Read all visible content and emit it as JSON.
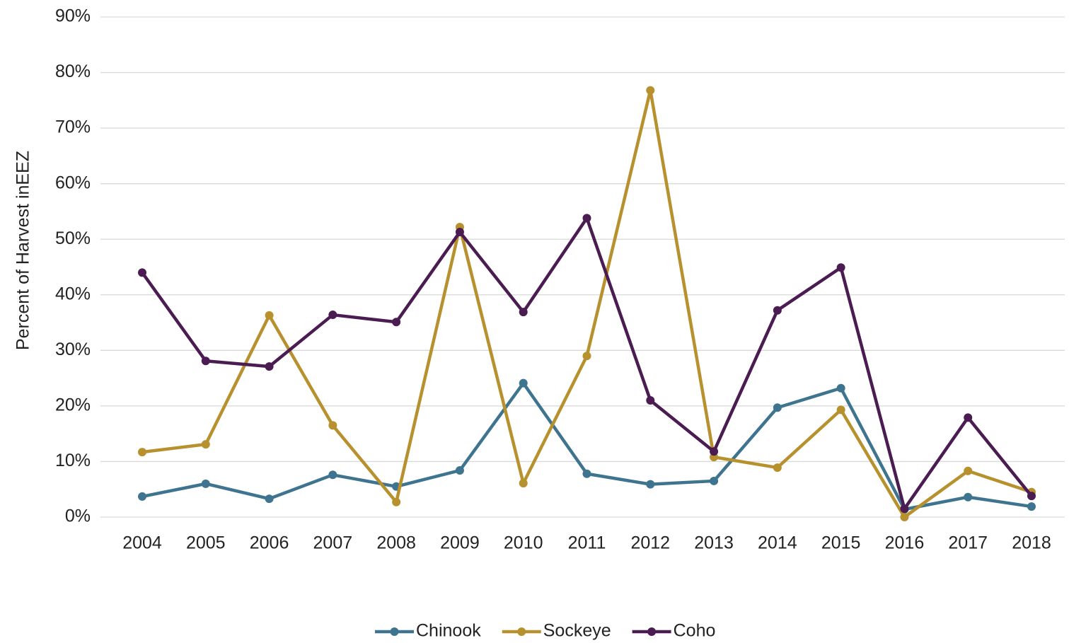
{
  "chart_data": {
    "type": "line",
    "y_label": "Percent of Harvest inEEZ",
    "categories": [
      "2004",
      "2005",
      "2006",
      "2007",
      "2008",
      "2009",
      "2010",
      "2011",
      "2012",
      "2013",
      "2014",
      "2015",
      "2016",
      "2017",
      "2018"
    ],
    "series": [
      {
        "name": "Chinook",
        "color": "#3e7490",
        "values": [
          3.7,
          6.0,
          3.3,
          7.6,
          5.5,
          8.4,
          24.1,
          7.8,
          5.9,
          6.5,
          19.7,
          23.2,
          1.4,
          3.6,
          1.9
        ]
      },
      {
        "name": "Sockeye",
        "color": "#b8912f",
        "values": [
          11.7,
          13.1,
          36.3,
          16.5,
          2.7,
          52.2,
          6.1,
          29.0,
          76.8,
          10.8,
          8.9,
          19.3,
          0,
          8.3,
          4.5
        ]
      },
      {
        "name": "Coho",
        "color": "#4b1c52",
        "values": [
          44.0,
          28.1,
          27.1,
          36.4,
          35.1,
          51.3,
          36.9,
          53.8,
          21.0,
          11.8,
          37.2,
          44.9,
          1.5,
          17.9,
          3.8
        ]
      }
    ],
    "ylim": [
      0,
      90
    ],
    "yticks": [
      {
        "value": 0,
        "label": "0%"
      },
      {
        "value": 10,
        "label": "10%"
      },
      {
        "value": 20,
        "label": "20%"
      },
      {
        "value": 30,
        "label": "30%"
      },
      {
        "value": 40,
        "label": "40%"
      },
      {
        "value": 50,
        "label": "50%"
      },
      {
        "value": 60,
        "label": "60%"
      },
      {
        "value": 70,
        "label": "70%"
      },
      {
        "value": 80,
        "label": "80%"
      },
      {
        "value": 90,
        "label": "90%"
      }
    ],
    "grid": true,
    "legend": "bottom"
  }
}
